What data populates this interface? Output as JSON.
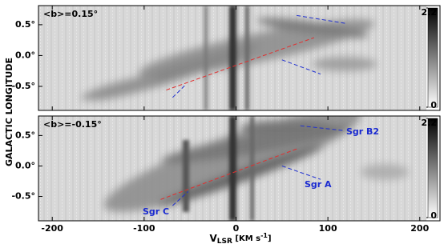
{
  "chart_data": [
    {
      "type": "heatmap",
      "annotation": "<b>=0.15°",
      "ylabel": "GALACTIC LONGITUDE",
      "xlim": [
        -215,
        222
      ],
      "ylim": [
        -0.89,
        0.81
      ],
      "xticks": [
        -200,
        -100,
        0,
        100,
        200
      ],
      "yticks": [
        {
          "value": 0.5,
          "label": "0.5°"
        },
        {
          "value": 0.0,
          "label": "0.0°"
        },
        {
          "value": -0.5,
          "label": "-0.5°"
        }
      ],
      "clim": [
        0,
        2.2
      ],
      "cticks": [
        {
          "value": 2.2,
          "label": "2.2"
        },
        {
          "value": 0,
          "label": "0"
        }
      ],
      "lines": [
        {
          "color": "#e03030",
          "x": [
            -76,
            85
          ],
          "y": [
            -0.56,
            0.29
          ]
        },
        {
          "color": "#2030d0",
          "x": [
            66,
            120
          ],
          "y": [
            0.65,
            0.52
          ]
        },
        {
          "color": "#2030d0",
          "x": [
            50,
            92
          ],
          "y": [
            -0.07,
            -0.3
          ]
        },
        {
          "color": "#2030d0",
          "x": [
            -69,
            -56
          ],
          "y": [
            -0.68,
            -0.49
          ]
        }
      ]
    },
    {
      "type": "heatmap",
      "annotation": "<b>=-0.15°",
      "xlabel": {
        "main": "V",
        "sub": "LSR",
        "unit": " [KM s",
        "sup": "-1",
        "close": "]"
      },
      "xlim": [
        -215,
        222
      ],
      "ylim": [
        -0.9,
        0.82
      ],
      "xticks": [
        -200,
        -100,
        0,
        100,
        200
      ],
      "yticks": [
        {
          "value": 0.5,
          "label": "0.5°"
        },
        {
          "value": 0.0,
          "label": "0.0°"
        },
        {
          "value": -0.5,
          "label": "-0.5°"
        }
      ],
      "clim": [
        0,
        2.2
      ],
      "cticks": [
        {
          "value": 2.2,
          "label": "2.2"
        },
        {
          "value": 0,
          "label": "0"
        }
      ],
      "labels": [
        "Sgr B2",
        "Sgr A",
        "Sgr C"
      ],
      "lines": [
        {
          "color": "#e03030",
          "x": [
            -82,
            68
          ],
          "y": [
            -0.55,
            0.29
          ]
        },
        {
          "color": "#2030d0",
          "x": [
            70,
            118
          ],
          "y": [
            0.66,
            0.58
          ]
        },
        {
          "color": "#2030d0",
          "x": [
            50,
            92
          ],
          "y": [
            0.0,
            -0.22
          ]
        },
        {
          "color": "#2030d0",
          "x": [
            -69,
            -52
          ],
          "y": [
            -0.65,
            -0.42
          ]
        }
      ]
    }
  ]
}
